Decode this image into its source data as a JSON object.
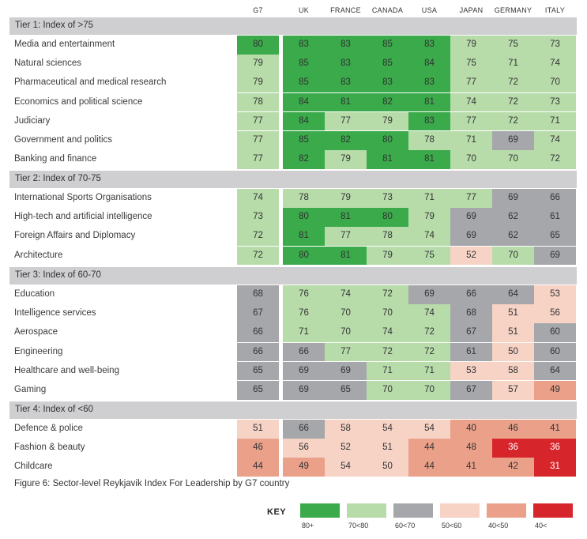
{
  "chart_data": {
    "type": "table",
    "title": "Figure 6: Sector-level Reykjavik Index For Leadership by G7 country",
    "columns": [
      "G7",
      "UK",
      "FRANCE",
      "CANADA",
      "USA",
      "JAPAN",
      "GERMANY",
      "ITALY"
    ],
    "tiers": [
      {
        "label": "Tier 1: Index of >75",
        "rows": [
          {
            "sector": "Media and entertainment",
            "values": [
              80,
              83,
              83,
              85,
              83,
              79,
              75,
              73
            ]
          },
          {
            "sector": "Natural sciences",
            "values": [
              79,
              85,
              83,
              85,
              84,
              75,
              71,
              74
            ]
          },
          {
            "sector": "Pharmaceutical and medical research",
            "values": [
              79,
              85,
              83,
              83,
              83,
              77,
              72,
              70
            ]
          },
          {
            "sector": "Economics and political science",
            "values": [
              78,
              84,
              81,
              82,
              81,
              74,
              72,
              73
            ]
          },
          {
            "sector": "Judiciary",
            "values": [
              77,
              84,
              77,
              79,
              83,
              77,
              72,
              71
            ]
          },
          {
            "sector": "Government and politics",
            "values": [
              77,
              85,
              82,
              80,
              78,
              71,
              69,
              74
            ]
          },
          {
            "sector": "Banking and finance",
            "values": [
              77,
              82,
              79,
              81,
              81,
              70,
              70,
              72
            ]
          }
        ]
      },
      {
        "label": "Tier 2: Index of 70-75",
        "rows": [
          {
            "sector": "International Sports Organisations",
            "values": [
              74,
              78,
              79,
              73,
              71,
              77,
              69,
              66
            ]
          },
          {
            "sector": "High-tech and artificial intelligence",
            "values": [
              73,
              80,
              81,
              80,
              79,
              69,
              62,
              61
            ]
          },
          {
            "sector": "Foreign Affairs and Diplomacy",
            "values": [
              72,
              81,
              77,
              78,
              74,
              69,
              62,
              65
            ]
          },
          {
            "sector": "Architecture",
            "values": [
              72,
              80,
              81,
              79,
              75,
              52,
              70,
              69
            ]
          }
        ]
      },
      {
        "label": "Tier 3: Index of 60-70",
        "rows": [
          {
            "sector": "Education",
            "values": [
              68,
              76,
              74,
              72,
              69,
              66,
              64,
              53
            ]
          },
          {
            "sector": "Intelligence services",
            "values": [
              67,
              76,
              70,
              70,
              74,
              68,
              51,
              56
            ]
          },
          {
            "sector": "Aerospace",
            "values": [
              66,
              71,
              70,
              74,
              72,
              67,
              51,
              60
            ]
          },
          {
            "sector": "Engineering",
            "values": [
              66,
              66,
              77,
              72,
              72,
              61,
              50,
              60
            ]
          },
          {
            "sector": "Healthcare and well-being",
            "values": [
              65,
              69,
              69,
              71,
              71,
              53,
              58,
              64
            ]
          },
          {
            "sector": "Gaming",
            "values": [
              65,
              69,
              65,
              70,
              70,
              67,
              57,
              49
            ]
          }
        ]
      },
      {
        "label": "Tier 4: Index of <60",
        "rows": [
          {
            "sector": "Defence & police",
            "values": [
              51,
              66,
              58,
              54,
              54,
              40,
              46,
              41
            ]
          },
          {
            "sector": "Fashion & beauty",
            "values": [
              46,
              56,
              52,
              51,
              44,
              48,
              36,
              36
            ]
          },
          {
            "sector": "Childcare",
            "values": [
              44,
              49,
              54,
              50,
              44,
              41,
              42,
              31
            ]
          }
        ]
      }
    ],
    "key": {
      "title": "KEY",
      "items": [
        {
          "label": "80+",
          "color": "#3aaa4a",
          "min": 80
        },
        {
          "label": "70<80",
          "color": "#b7dcaa",
          "min": 70
        },
        {
          "label": "60<70",
          "color": "#a6a7ab",
          "min": 60
        },
        {
          "label": "50<60",
          "color": "#f7d3c6",
          "min": 50
        },
        {
          "label": "40<50",
          "color": "#eaa089",
          "min": 40
        },
        {
          "label": "40<",
          "color": "#d7262b",
          "min": -1
        }
      ]
    }
  }
}
